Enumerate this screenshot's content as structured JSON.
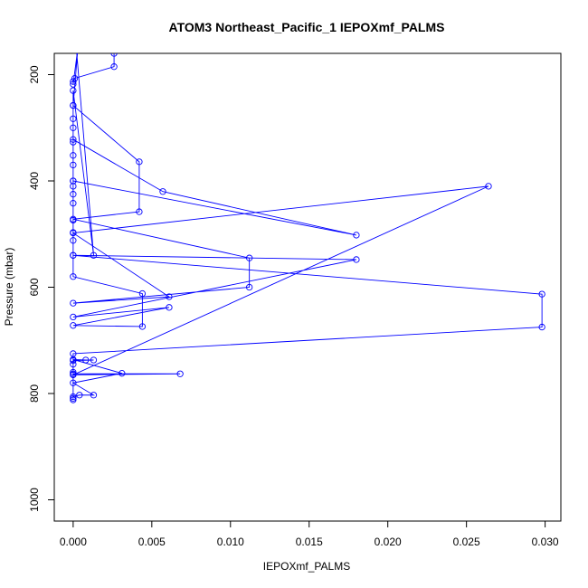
{
  "chart_data": {
    "type": "line",
    "title": "ATOM3 Northeast_Pacific_1 IEPOXmf_PALMS",
    "xlabel": "IEPOXmf_PALMS",
    "ylabel": "Pressure (mbar)",
    "xlim": [
      -0.0012,
      0.031
    ],
    "ylim": [
      1040,
      160
    ],
    "x_ticks": [
      0.0,
      0.005,
      0.01,
      0.015,
      0.02,
      0.025,
      0.03
    ],
    "x_tick_labels": [
      "0.000",
      "0.005",
      "0.010",
      "0.015",
      "0.020",
      "0.025",
      "0.030"
    ],
    "y_ticks": [
      200,
      400,
      600,
      800,
      1000
    ],
    "y_tick_labels": [
      "200",
      "400",
      "600",
      "800",
      "1000"
    ],
    "grid": false,
    "color": "#0000ff",
    "series": [
      {
        "points": [
          [
            0.0026,
            160
          ],
          [
            0.0026,
            185
          ],
          [
            0.0001,
            207
          ],
          [
            0.0,
            213
          ],
          [
            0.0,
            218
          ],
          [
            0.0003,
            150
          ],
          [
            0.0,
            258
          ],
          [
            0.0042,
            364
          ],
          [
            0.0042,
            458
          ],
          [
            0.0,
            472
          ],
          [
            0.0112,
            545
          ],
          [
            0.0112,
            600
          ],
          [
            0.0,
            630
          ],
          [
            0.0061,
            618
          ],
          [
            0.0,
            498
          ],
          [
            0.0264,
            410
          ],
          [
            0.0,
            765
          ],
          [
            0.0068,
            763
          ],
          [
            0.0,
            763
          ],
          [
            0.0,
            738
          ],
          [
            0.0013,
            737
          ],
          [
            0.0008,
            737
          ],
          [
            0.0,
            736
          ],
          [
            0.0031,
            762
          ],
          [
            0.0,
            780
          ],
          [
            0.0013,
            803
          ],
          [
            0.0004,
            803
          ],
          [
            0.0,
            806
          ],
          [
            0.0,
            809
          ],
          [
            0.0,
            812
          ],
          [
            0.0,
            760
          ],
          [
            0.0,
            745
          ],
          [
            0.0,
            725
          ],
          [
            0.0298,
            675
          ],
          [
            0.0298,
            613
          ],
          [
            0.0,
            540
          ],
          [
            0.018,
            548
          ],
          [
            0.0,
            656
          ],
          [
            0.0061,
            638
          ],
          [
            0.0,
            672
          ],
          [
            0.0044,
            674
          ],
          [
            0.0044,
            612
          ],
          [
            0.0,
            580
          ],
          [
            0.0,
            540
          ],
          [
            0.0,
            512
          ],
          [
            0.0,
            497
          ],
          [
            0.0,
            474
          ],
          [
            0.0,
            442
          ],
          [
            0.0,
            425
          ],
          [
            0.0,
            410
          ],
          [
            0.0,
            400
          ],
          [
            0.0,
            370
          ],
          [
            0.0,
            352
          ],
          [
            0.0,
            327
          ],
          [
            0.0,
            322
          ],
          [
            0.0057,
            420
          ],
          [
            0.018,
            502
          ],
          [
            0.0,
            400
          ],
          [
            0.0,
            300
          ],
          [
            0.0,
            283
          ],
          [
            0.0,
            258
          ],
          [
            0.0,
            230
          ],
          [
            0.0013,
            540
          ],
          [
            0.0002,
            150
          ]
        ]
      }
    ]
  }
}
